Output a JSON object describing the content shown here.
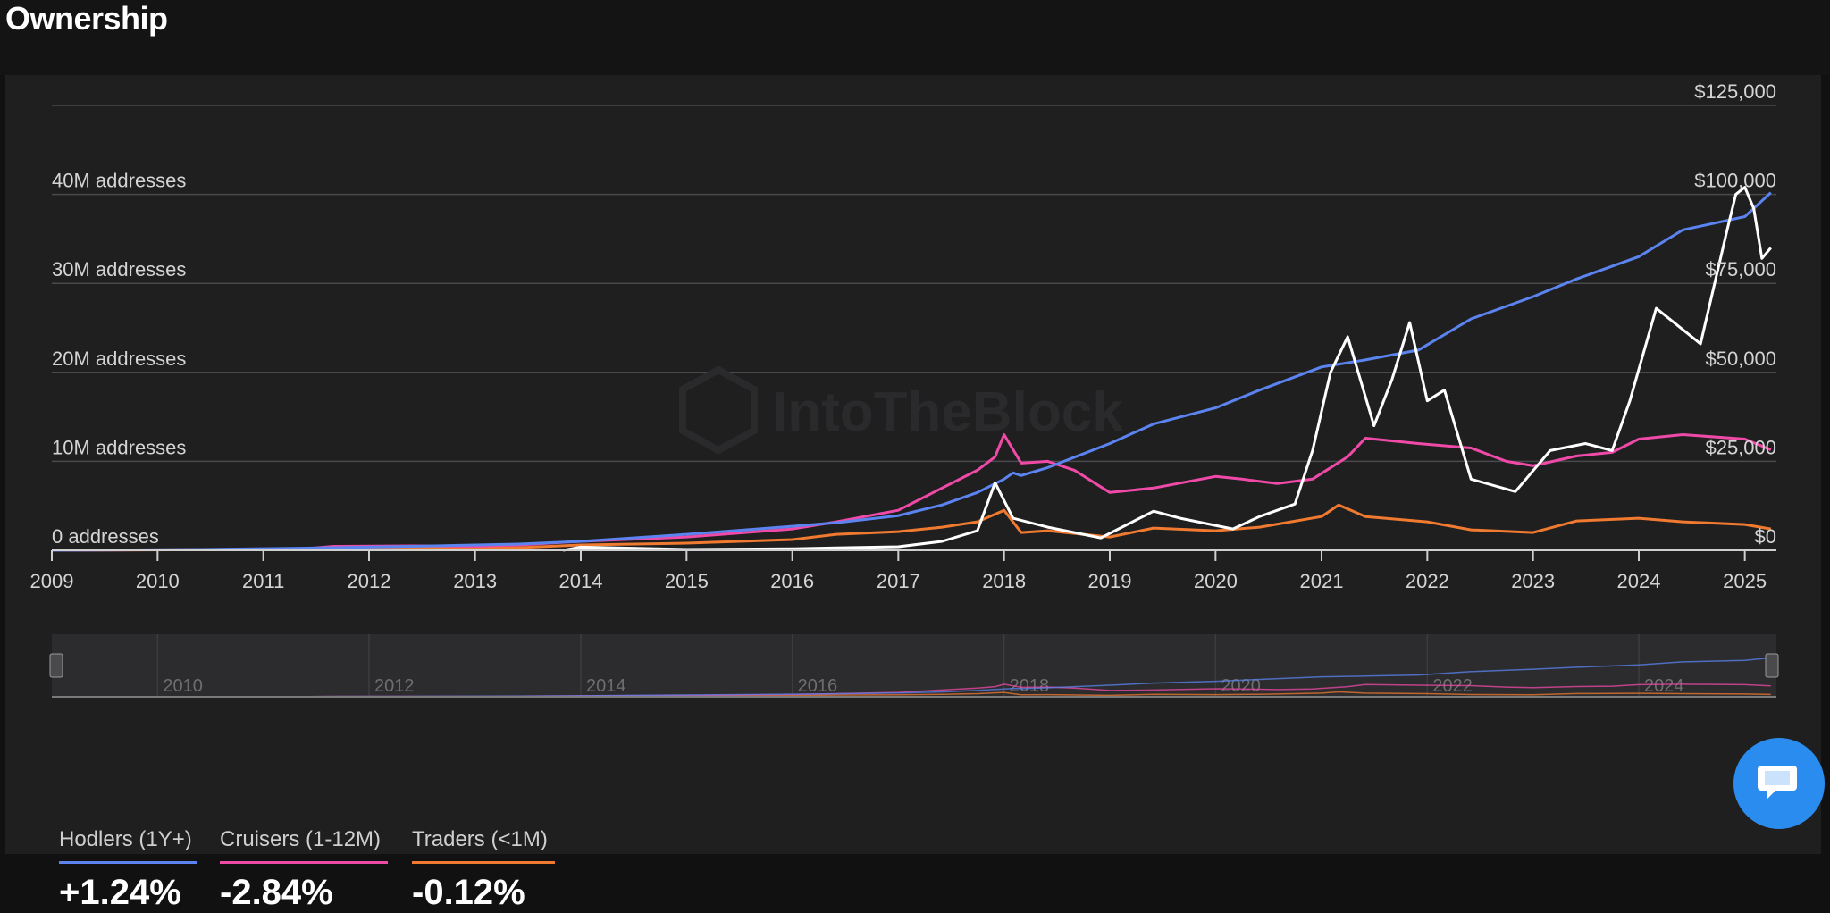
{
  "page": {
    "title": "Ownership"
  },
  "chart_data": {
    "type": "line",
    "watermark": "IntoTheBlock",
    "x_range": [
      "2009-01-01",
      "2025-04-20"
    ],
    "x_ticks": [
      "2009",
      "2010",
      "2011",
      "2012",
      "2013",
      "2014",
      "2015",
      "2016",
      "2017",
      "2018",
      "2019",
      "2020",
      "2021",
      "2022",
      "2023",
      "2024",
      "2025"
    ],
    "y_left": {
      "range": [
        0,
        40000000
      ],
      "ticks": [
        {
          "value": 0,
          "label": "0 addresses"
        },
        {
          "value": 10000000,
          "label": "10M addresses"
        },
        {
          "value": 20000000,
          "label": "20M addresses"
        },
        {
          "value": 30000000,
          "label": "30M addresses"
        },
        {
          "value": 40000000,
          "label": "40M addresses"
        }
      ]
    },
    "y_right": {
      "range": [
        0,
        125000
      ],
      "ticks": [
        {
          "value": 0,
          "label": "$0"
        },
        {
          "value": 25000,
          "label": "$25,000"
        },
        {
          "value": 50000,
          "label": "$50,000"
        },
        {
          "value": 75000,
          "label": "$75,000"
        },
        {
          "value": 100000,
          "label": "$100,000"
        },
        {
          "value": 125000,
          "label": "$125,000"
        }
      ]
    },
    "grid": true,
    "series": [
      {
        "name": "Hodlers (1Y+)",
        "axis": "left",
        "color": "#5b84f0",
        "points": [
          [
            "2009-01",
            0
          ],
          [
            "2010-06",
            100000
          ],
          [
            "2011-06",
            250000
          ],
          [
            "2012-06",
            450000
          ],
          [
            "2013-06",
            700000
          ],
          [
            "2014-01",
            1000000
          ],
          [
            "2015-01",
            1800000
          ],
          [
            "2016-01",
            2700000
          ],
          [
            "2016-06",
            3100000
          ],
          [
            "2017-01",
            3900000
          ],
          [
            "2017-06",
            5100000
          ],
          [
            "2017-10",
            6500000
          ],
          [
            "2018-01",
            8000000
          ],
          [
            "2018-02",
            8700000
          ],
          [
            "2018-03",
            8400000
          ],
          [
            "2018-06",
            9300000
          ],
          [
            "2019-01",
            12000000
          ],
          [
            "2019-06",
            14200000
          ],
          [
            "2020-01",
            16000000
          ],
          [
            "2020-06",
            18000000
          ],
          [
            "2021-01",
            20600000
          ],
          [
            "2021-06",
            21400000
          ],
          [
            "2021-12",
            22500000
          ],
          [
            "2022-06",
            26000000
          ],
          [
            "2023-01",
            28500000
          ],
          [
            "2023-06",
            30500000
          ],
          [
            "2024-01",
            33000000
          ],
          [
            "2024-06",
            36000000
          ],
          [
            "2025-01",
            37500000
          ],
          [
            "2025-04",
            40200000
          ]
        ]
      },
      {
        "name": "Cruisers (1-12M)",
        "axis": "left",
        "color": "#f04aa8",
        "points": [
          [
            "2009-01",
            0
          ],
          [
            "2010-06",
            80000
          ],
          [
            "2011-06",
            200000
          ],
          [
            "2011-09",
            450000
          ],
          [
            "2012-06",
            500000
          ],
          [
            "2013-01",
            450000
          ],
          [
            "2013-06",
            600000
          ],
          [
            "2014-01",
            1000000
          ],
          [
            "2015-01",
            1500000
          ],
          [
            "2016-01",
            2400000
          ],
          [
            "2016-06",
            3200000
          ],
          [
            "2017-01",
            4500000
          ],
          [
            "2017-06",
            7000000
          ],
          [
            "2017-10",
            9000000
          ],
          [
            "2017-12",
            10500000
          ],
          [
            "2018-01",
            13000000
          ],
          [
            "2018-03",
            9800000
          ],
          [
            "2018-06",
            10000000
          ],
          [
            "2018-09",
            9000000
          ],
          [
            "2019-01",
            6500000
          ],
          [
            "2019-06",
            7000000
          ],
          [
            "2020-01",
            8300000
          ],
          [
            "2020-04",
            8000000
          ],
          [
            "2020-08",
            7500000
          ],
          [
            "2020-12",
            8000000
          ],
          [
            "2021-04",
            10500000
          ],
          [
            "2021-06",
            12600000
          ],
          [
            "2021-12",
            12000000
          ],
          [
            "2022-06",
            11500000
          ],
          [
            "2022-10",
            10000000
          ],
          [
            "2023-01",
            9500000
          ],
          [
            "2023-06",
            10600000
          ],
          [
            "2023-10",
            11000000
          ],
          [
            "2024-01",
            12500000
          ],
          [
            "2024-06",
            13000000
          ],
          [
            "2025-01",
            12500000
          ],
          [
            "2025-04",
            11300000
          ]
        ]
      },
      {
        "name": "Traders (<1M)",
        "axis": "left",
        "color": "#f07a30",
        "points": [
          [
            "2009-01",
            0
          ],
          [
            "2011-06",
            100000
          ],
          [
            "2013-06",
            300000
          ],
          [
            "2014-01",
            600000
          ],
          [
            "2015-01",
            800000
          ],
          [
            "2016-01",
            1200000
          ],
          [
            "2016-06",
            1800000
          ],
          [
            "2017-01",
            2100000
          ],
          [
            "2017-06",
            2600000
          ],
          [
            "2017-10",
            3200000
          ],
          [
            "2018-01",
            4500000
          ],
          [
            "2018-03",
            2000000
          ],
          [
            "2018-06",
            2200000
          ],
          [
            "2019-01",
            1500000
          ],
          [
            "2019-06",
            2500000
          ],
          [
            "2020-01",
            2200000
          ],
          [
            "2020-06",
            2600000
          ],
          [
            "2021-01",
            3800000
          ],
          [
            "2021-03",
            5100000
          ],
          [
            "2021-06",
            3800000
          ],
          [
            "2022-01",
            3200000
          ],
          [
            "2022-06",
            2300000
          ],
          [
            "2023-01",
            2000000
          ],
          [
            "2023-06",
            3300000
          ],
          [
            "2024-01",
            3600000
          ],
          [
            "2024-06",
            3200000
          ],
          [
            "2025-01",
            2900000
          ],
          [
            "2025-04",
            2400000
          ]
        ]
      },
      {
        "name": "Price",
        "axis": "right",
        "color": "#ffffff",
        "points": [
          [
            "2013-11",
            0
          ],
          [
            "2014-01",
            900
          ],
          [
            "2015-01",
            250
          ],
          [
            "2016-01",
            430
          ],
          [
            "2016-06",
            700
          ],
          [
            "2017-01",
            1000
          ],
          [
            "2017-06",
            2500
          ],
          [
            "2017-10",
            5500
          ],
          [
            "2017-12",
            19000
          ],
          [
            "2018-02",
            9000
          ],
          [
            "2018-06",
            6500
          ],
          [
            "2018-12",
            3500
          ],
          [
            "2019-06",
            11000
          ],
          [
            "2019-09",
            9000
          ],
          [
            "2020-03",
            6000
          ],
          [
            "2020-06",
            9500
          ],
          [
            "2020-10",
            13000
          ],
          [
            "2020-12",
            28000
          ],
          [
            "2021-02",
            50000
          ],
          [
            "2021-04",
            60000
          ],
          [
            "2021-07",
            35000
          ],
          [
            "2021-09",
            48000
          ],
          [
            "2021-11",
            64000
          ],
          [
            "2022-01",
            42000
          ],
          [
            "2022-03",
            45000
          ],
          [
            "2022-06",
            20000
          ],
          [
            "2022-11",
            16500
          ],
          [
            "2023-03",
            28000
          ],
          [
            "2023-07",
            30000
          ],
          [
            "2023-10",
            28000
          ],
          [
            "2023-12",
            42000
          ],
          [
            "2024-03",
            68000
          ],
          [
            "2024-08",
            58000
          ],
          [
            "2024-11",
            90000
          ],
          [
            "2024-12",
            100000
          ],
          [
            "2025-01",
            102000
          ],
          [
            "2025-02",
            96000
          ],
          [
            "2025-03",
            82000
          ],
          [
            "2025-04",
            85000
          ]
        ]
      }
    ],
    "navigator": {
      "ticks": [
        "2010",
        "2012",
        "2014",
        "2016",
        "2018",
        "2020",
        "2022",
        "2024"
      ]
    },
    "legend": [
      {
        "name": "Hodlers (1Y+)",
        "change": "+1.24%",
        "color": "#5b84f0"
      },
      {
        "name": "Cruisers (1-12M)",
        "change": "-2.84%",
        "color": "#f04aa8"
      },
      {
        "name": "Traders (<1M)",
        "change": "-0.12%",
        "color": "#f07a30"
      }
    ]
  },
  "chat": {
    "icon": "chat-bubble-icon"
  }
}
